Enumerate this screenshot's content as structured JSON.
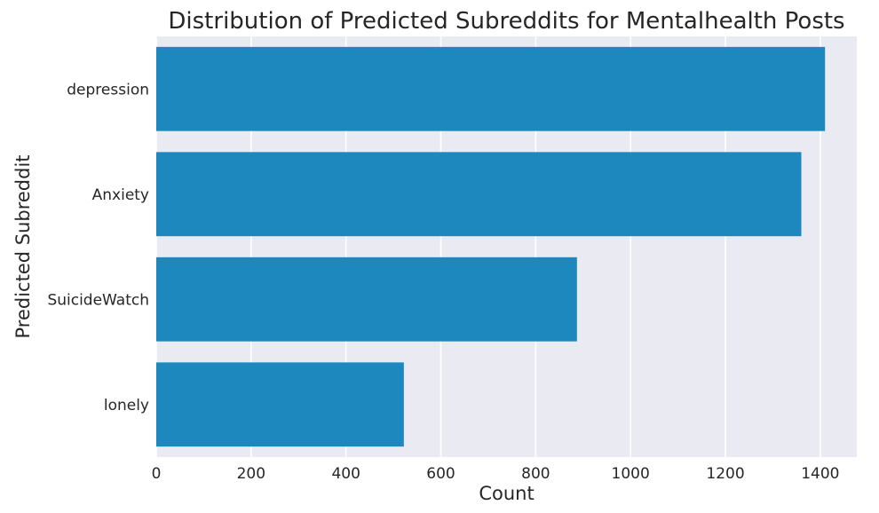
{
  "chart_data": {
    "type": "bar",
    "orientation": "horizontal",
    "title": "Distribution of Predicted Subreddits for Mentalhealth Posts",
    "xlabel": "Count",
    "ylabel": "Predicted Subreddit",
    "categories": [
      "depression",
      "Anxiety",
      "SuicideWatch",
      "lonely"
    ],
    "values": [
      1410,
      1360,
      887,
      522
    ],
    "xlim": [
      0,
      1477
    ],
    "xticks": [
      0,
      200,
      400,
      600,
      800,
      1000,
      1200,
      1400
    ],
    "grid": true,
    "bar_color": "#1c88bd",
    "plot_background": "#eaeaf2",
    "grid_color": "#ffffff"
  }
}
